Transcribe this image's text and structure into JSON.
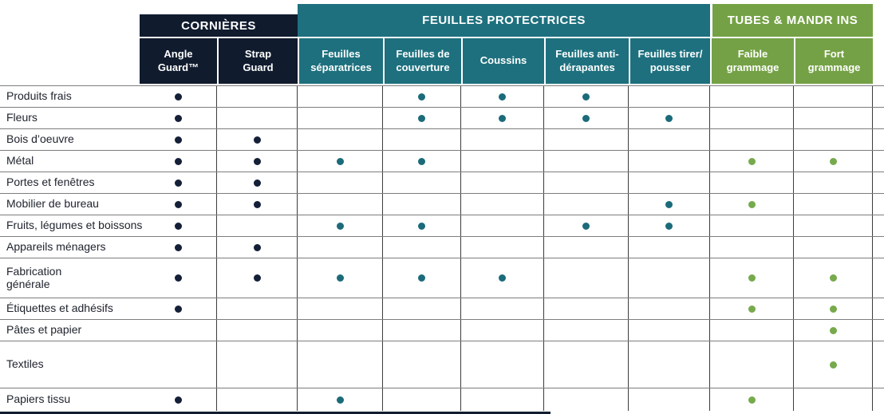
{
  "table": {
    "groups": [
      {
        "label": "CORNIÈRES",
        "color": "#101b2e",
        "dot_color": "#141f38",
        "span": 2
      },
      {
        "label": "FEUILLES PROTECTRICES",
        "color": "#1e707e",
        "dot_color": "#1b6b7a",
        "span": 5
      },
      {
        "label": "TUBES & MANDR INS",
        "color": "#74a145",
        "dot_color": "#76aa4c",
        "span": 2
      }
    ],
    "columns": [
      {
        "label": "Angle\nGuard™",
        "group": 0
      },
      {
        "label": "Strap\nGuard",
        "group": 0
      },
      {
        "label": "Feuilles\nséparatrices",
        "group": 1
      },
      {
        "label": "Feuilles de\ncouverture",
        "group": 1
      },
      {
        "label": "Coussins",
        "group": 1
      },
      {
        "label": "Feuilles anti-\ndérapantes",
        "group": 1
      },
      {
        "label": "Feuilles tirer/\npousser",
        "group": 1
      },
      {
        "label": "Faible\ngrammage",
        "group": 2
      },
      {
        "label": "Fort\ngrammage",
        "group": 2
      }
    ],
    "rows": [
      {
        "label": "Produits frais",
        "dots": [
          0,
          3,
          4,
          5
        ]
      },
      {
        "label": "Fleurs",
        "dots": [
          0,
          3,
          4,
          5,
          6
        ]
      },
      {
        "label": "Bois d’oeuvre",
        "dots": [
          0,
          1
        ]
      },
      {
        "label": "Métal",
        "dots": [
          0,
          1,
          2,
          3,
          7,
          8
        ]
      },
      {
        "label": "Portes et fenêtres",
        "dots": [
          0,
          1
        ]
      },
      {
        "label": "Mobilier de bureau",
        "dots": [
          0,
          1,
          6,
          7
        ]
      },
      {
        "label": "Fruits, légumes et boissons",
        "dots": [
          0,
          2,
          3,
          5,
          6
        ]
      },
      {
        "label": "Appareils ménagers",
        "dots": [
          0,
          1
        ]
      },
      {
        "label": "Fabrication\ngénérale",
        "dots": [
          0,
          1,
          2,
          3,
          4,
          7,
          8
        ]
      },
      {
        "label": "Étiquettes et adhésifs",
        "dots": [
          0,
          7,
          8
        ]
      },
      {
        "label": "Pâtes et papier",
        "dots": [
          8
        ]
      },
      {
        "label": "Textiles",
        "dots": [
          8
        ]
      },
      {
        "label": "Papiers tissu",
        "dots": [
          0,
          2,
          7
        ]
      }
    ]
  }
}
